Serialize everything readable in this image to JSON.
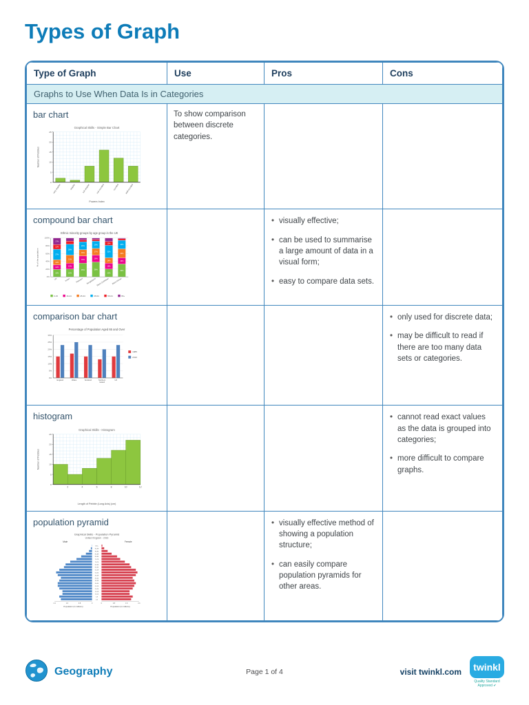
{
  "page": {
    "title": "Types of Graph",
    "footer": {
      "subject": "Geography",
      "page_label": "Page 1 of 4",
      "visit": "visit twinkl.com",
      "brand": "twinkl",
      "badge": "Quality Standard Approved"
    },
    "colors": {
      "accent": "#0e7cb8",
      "table_border": "#3f86bd",
      "section_bg": "#d6eff3",
      "twinkl_blue": "#29abe2"
    }
  },
  "table": {
    "headers": [
      "Type of Graph",
      "Use",
      "Pros",
      "Cons"
    ],
    "section": "Graphs to Use When Data Is in Categories",
    "rows": [
      {
        "type": "bar chart",
        "use": "To show comparison between discrete categories.",
        "pros": [],
        "cons": [],
        "chart": {
          "type": "bar",
          "title": "Graphical Skills - Simple Bar Chart",
          "ylabel": "Number of Pebbles",
          "xlabel": "Powers Index",
          "categories": [
            "very angular",
            "angular",
            "sub-angular",
            "sub-rounded",
            "rounded",
            "well-rounded"
          ],
          "values": [
            2,
            1,
            8,
            16,
            12,
            8
          ],
          "ymax": 25,
          "ystep": 5,
          "bar_color": "#8dc63f"
        }
      },
      {
        "type": "compound bar chart",
        "use": "",
        "pros": [
          "visually effective;",
          "can be used to summarise a large amount of data in a visual form;",
          "easy to compare data sets."
        ],
        "cons": [],
        "chart": {
          "type": "stacked",
          "title": "Ethnic minority groups by age group in the UK",
          "ylabel": "% of the population",
          "categories": [
            "UK",
            "Indian",
            "Pakistani",
            "Bangladeshi",
            "Black Caribbean",
            "Black African"
          ],
          "yticks": [
            "0%",
            "20%",
            "40%",
            "60%",
            "80%",
            "100%"
          ],
          "series": [
            {
              "name": "0-15",
              "color": "#7ac143",
              "values": [
                19,
                20,
                35,
                38,
                20,
                33
              ]
            },
            {
              "name": "16-24",
              "color": "#ec068d",
              "values": [
                12,
                15,
                19,
                18,
                15,
                16
              ]
            },
            {
              "name": "25-34",
              "color": "#f47b20",
              "values": [
                13,
                21,
                16,
                17,
                14,
                23
              ]
            },
            {
              "name": "35-54",
              "color": "#00aeef",
              "values": [
                27,
                28,
                20,
                19,
                32,
                22
              ]
            },
            {
              "name": "55-64",
              "color": "#ed1c24",
              "values": [
                12,
                8,
                5,
                4,
                10,
                4
              ]
            },
            {
              "name": "65+",
              "color": "#92278f",
              "values": [
                17,
                8,
                5,
                4,
                9,
                2
              ]
            }
          ]
        }
      },
      {
        "type": "comparison bar chart",
        "use": "",
        "pros": [],
        "cons": [
          "only used for discrete data;",
          "may be difficult to read if there are too many data sets or categories."
        ],
        "chart": {
          "type": "grouped",
          "title": "Percentage of Population Aged 65 and Over",
          "categories": [
            "England",
            "Wales",
            "Scotland",
            "Northern Ireland",
            "UK"
          ],
          "ymax": 30,
          "ystep": 5,
          "series": [
            {
              "name": "1985",
              "color": "#e03a3e",
              "values": [
                15,
                17,
                15,
                13,
                15
              ]
            },
            {
              "name": "2010",
              "color": "#4f81bd",
              "values": [
                23,
                25,
                23,
                20,
                23
              ]
            }
          ]
        }
      },
      {
        "type": "histogram",
        "use": "",
        "pros": [],
        "cons": [
          "cannot read exact values as the data is grouped into categories;",
          "more difficult to compare graphs."
        ],
        "chart": {
          "type": "histogram",
          "title": "Graphical Skills - Histogram",
          "ylabel": "Number of Pebbles",
          "xlabel": "Length of Pebble (Long Axis) (cm)",
          "bins": [
            0,
            2,
            4,
            6,
            8,
            10,
            12
          ],
          "values": [
            10,
            5,
            8,
            13,
            17,
            22
          ],
          "ymax": 25,
          "ystep": 5,
          "bar_color": "#8dc63f"
        }
      },
      {
        "type": "population pyramid",
        "use": "",
        "pros": [
          "visually effective method of showing a population structure;",
          "can easily compare population pyramids for other areas."
        ],
        "cons": [],
        "chart": {
          "type": "pyramid",
          "title": "Graphical Skills - Population Pyramid",
          "subtitle": "United Kingdom - 2016",
          "left_label": "Male",
          "right_label": "Female",
          "xlabel": "Population (in millions)",
          "xmax": 2.4,
          "male_color": "#4e87c7",
          "female_color": "#d6404f",
          "age_groups": [
            "100+",
            "95-99",
            "90-94",
            "85-89",
            "80-84",
            "75-79",
            "70-74",
            "65-69",
            "60-64",
            "55-59",
            "50-54",
            "45-49",
            "40-44",
            "35-39",
            "30-34",
            "25-29",
            "20-24",
            "15-19",
            "10-14",
            "5-9",
            "0-4"
          ],
          "male": [
            0.02,
            0.08,
            0.2,
            0.4,
            0.7,
            1.0,
            1.4,
            1.7,
            1.8,
            2.1,
            2.3,
            2.2,
            2.0,
            2.1,
            2.2,
            2.2,
            2.1,
            1.9,
            1.9,
            2.1,
            2.0
          ],
          "female": [
            0.06,
            0.18,
            0.4,
            0.65,
            1.0,
            1.2,
            1.5,
            1.8,
            1.9,
            2.2,
            2.3,
            2.2,
            2.0,
            2.1,
            2.2,
            2.1,
            2.0,
            1.8,
            1.8,
            2.0,
            1.9
          ]
        }
      }
    ]
  }
}
